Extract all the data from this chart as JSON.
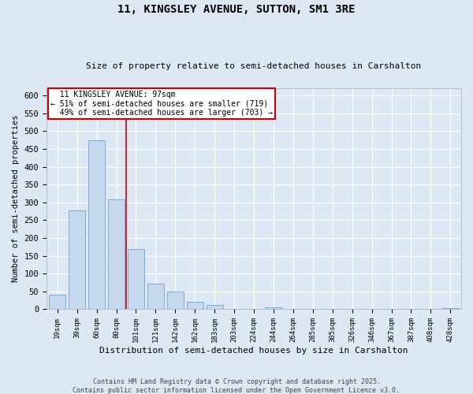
{
  "title_line1": "11, KINGSLEY AVENUE, SUTTON, SM1 3RE",
  "title_line2": "Size of property relative to semi-detached houses in Carshalton",
  "xlabel": "Distribution of semi-detached houses by size in Carshalton",
  "ylabel": "Number of semi-detached properties",
  "property_label": "11 KINGSLEY AVENUE: 97sqm",
  "pct_smaller": 51,
  "count_smaller": 719,
  "pct_larger": 49,
  "count_larger": 703,
  "annotation_box_color": "#cc0000",
  "bar_color": "#c5d8ee",
  "bar_edge_color": "#7aadd4",
  "vline_color": "#cc0000",
  "background_color": "#dde8f4",
  "grid_color": "#ffffff",
  "categories": [
    "19sqm",
    "39sqm",
    "60sqm",
    "80sqm",
    "101sqm",
    "121sqm",
    "142sqm",
    "162sqm",
    "183sqm",
    "203sqm",
    "224sqm",
    "244sqm",
    "264sqm",
    "285sqm",
    "305sqm",
    "326sqm",
    "346sqm",
    "367sqm",
    "387sqm",
    "408sqm",
    "428sqm"
  ],
  "values": [
    40,
    278,
    475,
    308,
    170,
    72,
    50,
    20,
    12,
    0,
    0,
    5,
    0,
    0,
    0,
    0,
    0,
    0,
    0,
    0,
    3
  ],
  "ylim": [
    0,
    620
  ],
  "yticks": [
    0,
    50,
    100,
    150,
    200,
    250,
    300,
    350,
    400,
    450,
    500,
    550,
    600
  ],
  "vline_x_index": 4,
  "footer_line1": "Contains HM Land Registry data © Crown copyright and database right 2025.",
  "footer_line2": "Contains public sector information licensed under the Open Government Licence v3.0."
}
